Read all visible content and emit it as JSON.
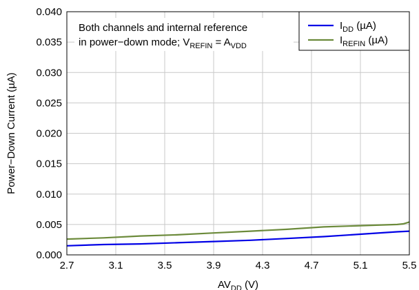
{
  "chart_data": {
    "type": "line",
    "xlabel": {
      "main": "AV",
      "sub": "DD",
      "tail": " (V)"
    },
    "ylabel": "Power−Down Current (µA)",
    "xlim": [
      2.7,
      5.5
    ],
    "ylim": [
      0.0,
      0.04
    ],
    "x_ticks": [
      "2.7",
      "3.1",
      "3.5",
      "3.9",
      "4.3",
      "4.7",
      "5.1",
      "5.5"
    ],
    "y_ticks": [
      "0.000",
      "0.005",
      "0.010",
      "0.015",
      "0.020",
      "0.025",
      "0.030",
      "0.035",
      "0.040"
    ],
    "grid": true,
    "legend_position": "top-right",
    "annotation": {
      "line1": "Both channels and internal reference",
      "line2_prefix": "in power−down mode; V",
      "line2_sub1": "REFIN",
      "line2_mid": " = A",
      "line2_sub2": "VDD"
    },
    "series": [
      {
        "name": "IDD (µA)",
        "label_main": "I",
        "label_sub": "DD",
        "label_tail": " (µA)",
        "color": "#0000e6",
        "x": [
          2.7,
          3.0,
          3.3,
          3.6,
          3.9,
          4.2,
          4.5,
          4.8,
          5.1,
          5.4,
          5.5
        ],
        "y": [
          0.0015,
          0.0017,
          0.0018,
          0.002,
          0.0022,
          0.0024,
          0.0027,
          0.003,
          0.0034,
          0.0038,
          0.0039
        ]
      },
      {
        "name": "IREFIN (µA)",
        "label_main": "I",
        "label_sub": "REFIN",
        "label_tail": " (µA)",
        "color": "#6b8a3a",
        "x": [
          2.7,
          3.0,
          3.3,
          3.6,
          3.9,
          4.2,
          4.5,
          4.8,
          5.1,
          5.4,
          5.45,
          5.5
        ],
        "y": [
          0.0026,
          0.0028,
          0.0031,
          0.0033,
          0.0036,
          0.0039,
          0.0042,
          0.0046,
          0.0048,
          0.005,
          0.0051,
          0.0054
        ]
      }
    ]
  }
}
